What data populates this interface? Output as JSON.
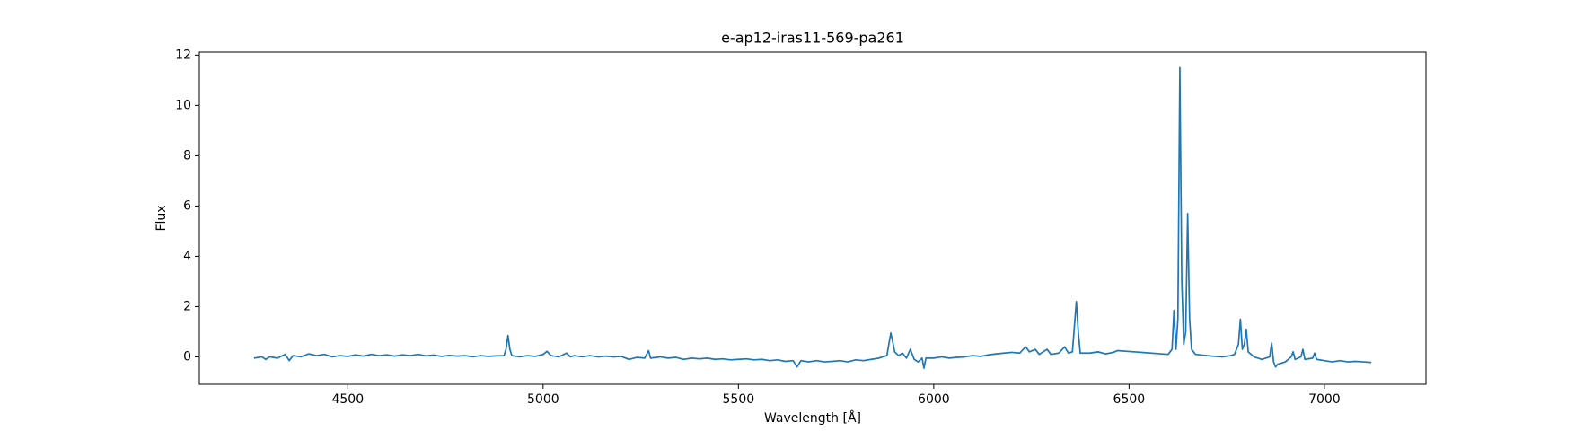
{
  "chart_data": {
    "type": "line",
    "title": "e-ap12-iras11-569-pa261",
    "xlabel": "Wavelength [Å]",
    "ylabel": "Flux",
    "xlim": [
      4120,
      7260
    ],
    "ylim": [
      -1.09,
      12.12
    ],
    "xticks": [
      4500,
      5000,
      5500,
      6000,
      6500,
      7000
    ],
    "yticks": [
      0,
      2,
      4,
      6,
      8,
      10,
      12
    ],
    "series": [
      {
        "color": "#1f77b4",
        "x": [
          4260,
          4280,
          4290,
          4300,
          4320,
          4340,
          4350,
          4360,
          4380,
          4400,
          4420,
          4440,
          4460,
          4480,
          4500,
          4520,
          4540,
          4560,
          4580,
          4600,
          4620,
          4640,
          4660,
          4680,
          4700,
          4720,
          4740,
          4760,
          4780,
          4800,
          4820,
          4840,
          4860,
          4880,
          4900,
          4905,
          4910,
          4915,
          4920,
          4940,
          4960,
          4980,
          5000,
          5010,
          5020,
          5040,
          5060,
          5070,
          5080,
          5100,
          5120,
          5140,
          5160,
          5180,
          5200,
          5220,
          5240,
          5260,
          5270,
          5275,
          5300,
          5320,
          5340,
          5360,
          5380,
          5400,
          5420,
          5440,
          5460,
          5480,
          5500,
          5520,
          5540,
          5560,
          5580,
          5600,
          5620,
          5640,
          5650,
          5660,
          5680,
          5700,
          5720,
          5740,
          5760,
          5780,
          5800,
          5820,
          5840,
          5860,
          5880,
          5890,
          5895,
          5900,
          5910,
          5920,
          5930,
          5940,
          5950,
          5960,
          5970,
          5975,
          5980,
          6000,
          6020,
          6040,
          6060,
          6080,
          6100,
          6120,
          6140,
          6160,
          6180,
          6200,
          6220,
          6235,
          6245,
          6260,
          6270,
          6290,
          6300,
          6320,
          6335,
          6345,
          6355,
          6360,
          6365,
          6370,
          6375,
          6400,
          6420,
          6440,
          6460,
          6470,
          6600,
          6610,
          6615,
          6620,
          6625,
          6630,
          6635,
          6640,
          6645,
          6650,
          6655,
          6660,
          6670,
          6700,
          6720,
          6740,
          6760,
          6770,
          6780,
          6785,
          6790,
          6795,
          6800,
          6805,
          6820,
          6840,
          6860,
          6865,
          6870,
          6875,
          6880,
          6900,
          6915,
          6920,
          6925,
          6940,
          6945,
          6950,
          6970,
          6975,
          6980,
          7000,
          7020,
          7040,
          7060,
          7080,
          7100,
          7120
        ],
        "values": [
          -0.05,
          0.0,
          -0.1,
          0.0,
          -0.05,
          0.1,
          -0.15,
          0.05,
          0.0,
          0.12,
          0.05,
          0.1,
          0.0,
          0.05,
          0.02,
          0.08,
          0.03,
          0.1,
          0.05,
          0.08,
          0.03,
          0.08,
          0.05,
          0.1,
          0.04,
          0.07,
          0.02,
          0.06,
          0.03,
          0.05,
          0.0,
          0.05,
          0.02,
          0.04,
          0.05,
          0.3,
          0.85,
          0.3,
          0.05,
          0.0,
          0.05,
          0.02,
          0.1,
          0.22,
          0.05,
          0.0,
          0.15,
          0.0,
          0.05,
          0.0,
          0.05,
          0.0,
          0.03,
          0.0,
          0.02,
          -0.1,
          -0.02,
          -0.05,
          0.25,
          -0.05,
          0.0,
          -0.05,
          -0.02,
          -0.1,
          -0.05,
          -0.08,
          -0.05,
          -0.1,
          -0.08,
          -0.12,
          -0.1,
          -0.08,
          -0.12,
          -0.1,
          -0.15,
          -0.12,
          -0.18,
          -0.15,
          -0.4,
          -0.15,
          -0.2,
          -0.15,
          -0.2,
          -0.18,
          -0.15,
          -0.2,
          -0.12,
          -0.15,
          -0.1,
          -0.05,
          0.05,
          0.95,
          0.6,
          0.2,
          0.05,
          0.15,
          -0.05,
          0.3,
          -0.1,
          -0.2,
          -0.05,
          -0.45,
          -0.05,
          -0.05,
          0.0,
          -0.05,
          -0.02,
          0.0,
          0.05,
          0.02,
          0.08,
          0.12,
          0.15,
          0.18,
          0.15,
          0.4,
          0.2,
          0.3,
          0.1,
          0.3,
          0.1,
          0.15,
          0.4,
          0.15,
          0.2,
          1.2,
          2.2,
          1.0,
          0.15,
          0.15,
          0.2,
          0.12,
          0.18,
          0.25,
          0.1,
          0.3,
          1.85,
          0.3,
          1.5,
          11.5,
          3.0,
          0.5,
          1.0,
          5.7,
          1.5,
          0.3,
          0.1,
          0.05,
          0.02,
          0.0,
          0.05,
          0.1,
          0.5,
          1.5,
          0.3,
          0.5,
          1.1,
          0.2,
          0.0,
          -0.1,
          0.0,
          0.55,
          -0.2,
          -0.4,
          -0.3,
          -0.2,
          0.0,
          0.2,
          -0.1,
          0.0,
          0.3,
          -0.1,
          -0.05,
          0.15,
          -0.1,
          -0.15,
          -0.2,
          -0.15,
          -0.2,
          -0.18,
          -0.2,
          -0.22
        ]
      }
    ]
  }
}
